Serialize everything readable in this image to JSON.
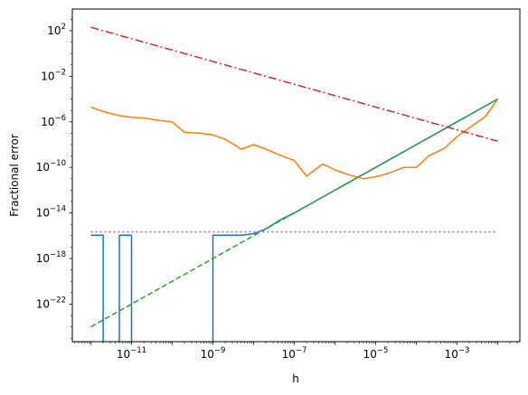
{
  "chart_data": {
    "type": "line",
    "xlabel": "h",
    "ylabel": "Fractional error",
    "xscale": "log",
    "yscale": "log",
    "xlim": [
      3.5e-13,
      0.035
    ],
    "ylim": [
      5e-26,
      8000.0
    ],
    "xticks": [
      {
        "value": 1e-11,
        "base": "10",
        "exp": "−11"
      },
      {
        "value": 1e-09,
        "base": "10",
        "exp": "−9"
      },
      {
        "value": 1e-07,
        "base": "10",
        "exp": "−7"
      },
      {
        "value": 1e-05,
        "base": "10",
        "exp": "−5"
      },
      {
        "value": 0.001,
        "base": "10",
        "exp": "−3"
      }
    ],
    "yticks": [
      {
        "value": 100.0,
        "base": "10",
        "exp": "2"
      },
      {
        "value": 0.01,
        "base": "10",
        "exp": "−2"
      },
      {
        "value": 1e-06,
        "base": "10",
        "exp": "−6"
      },
      {
        "value": 1e-10,
        "base": "10",
        "exp": "−10"
      },
      {
        "value": 1e-14,
        "base": "10",
        "exp": "−14"
      },
      {
        "value": 1e-18,
        "base": "10",
        "exp": "−18"
      },
      {
        "value": 1e-22,
        "base": "10",
        "exp": "−22"
      }
    ],
    "grid": false,
    "series": [
      {
        "color": "#1f77b4",
        "style": "solid",
        "x": [
          1e-12,
          2e-12,
          2e-12,
          5e-12,
          5e-12,
          1e-11,
          1e-11,
          1e-09,
          1e-09,
          2e-09,
          5e-09,
          1e-08,
          2e-08,
          5e-08,
          1e-07,
          1e-06,
          1e-05,
          0.0001,
          0.001,
          0.01
        ],
        "y": [
          1.1e-16,
          1.1e-16,
          1e-40,
          1e-40,
          1.1e-16,
          1.1e-16,
          1e-40,
          1e-40,
          1.1e-16,
          1.1e-16,
          1.1e-16,
          1.5e-16,
          4e-16,
          3e-15,
          1e-14,
          1e-12,
          1e-10,
          1e-08,
          1e-06,
          0.0001
        ]
      },
      {
        "color": "#ff7f0e",
        "style": "solid",
        "x": [
          1e-12,
          2e-12,
          5e-12,
          1e-11,
          2e-11,
          5e-11,
          1e-10,
          2e-10,
          5e-10,
          1e-09,
          2e-09,
          5e-09,
          1e-08,
          2e-08,
          5e-08,
          1e-07,
          2e-07,
          5e-07,
          1e-06,
          2e-06,
          5e-06,
          1e-05,
          2e-05,
          5e-05,
          0.0001,
          0.0002,
          0.0005,
          0.001,
          0.002,
          0.005,
          0.01
        ],
        "y": [
          2e-05,
          8e-06,
          3.5e-06,
          2.5e-06,
          2.2e-06,
          1.3e-06,
          1e-06,
          1.2e-07,
          1e-07,
          7e-08,
          3e-08,
          4e-09,
          1e-08,
          4e-09,
          1e-09,
          4e-10,
          1.7e-11,
          2e-10,
          6e-11,
          2.5e-11,
          1e-11,
          1.5e-11,
          3e-11,
          1e-10,
          1e-10,
          1e-09,
          5e-09,
          5e-08,
          3e-07,
          3e-06,
          0.0001
        ]
      },
      {
        "color": "#2ca02c",
        "style": "dashed",
        "x": [
          1e-12,
          0.01
        ],
        "y": [
          1e-24,
          0.0001
        ]
      },
      {
        "color": "#d62728",
        "style": "dashdot",
        "x": [
          1e-12,
          0.01
        ],
        "y": [
          200.0,
          2e-08
        ]
      },
      {
        "color": "#9467bd",
        "style": "dotted",
        "x": [
          1e-12,
          0.01
        ],
        "y": [
          2.2e-16,
          2.2e-16
        ]
      }
    ]
  }
}
